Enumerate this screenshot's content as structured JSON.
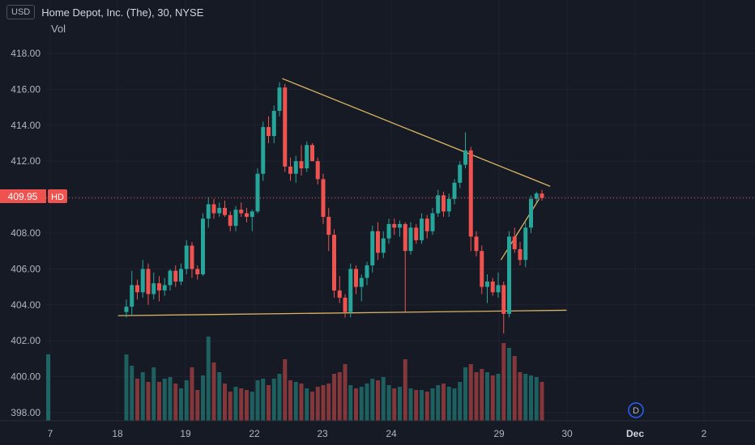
{
  "header": {
    "currency": "USD",
    "title": "Home Depot, Inc. (The), 30, NYSE",
    "volume_label": "Vol"
  },
  "price_marker": {
    "value": "409.95",
    "tag": "HD",
    "color": "#ef5350"
  },
  "colors": {
    "up": "#26a69a",
    "down": "#ef5350",
    "trendline": "#d8b463",
    "background": "#161a25"
  },
  "icons": {
    "dividend": "D"
  },
  "chart_data": {
    "type": "candlestick",
    "symbol": "HD",
    "interval": "30",
    "y_ticks": [
      "418.00",
      "416.00",
      "414.00",
      "412.00",
      "410.00",
      "408.00",
      "406.00",
      "404.00",
      "402.00",
      "400.00",
      "398.00"
    ],
    "ylim": [
      397.6,
      419.2
    ],
    "x_ticks": [
      {
        "label": "7",
        "bold": false
      },
      {
        "label": "18",
        "bold": false
      },
      {
        "label": "19",
        "bold": false
      },
      {
        "label": "22",
        "bold": false
      },
      {
        "label": "23",
        "bold": false
      },
      {
        "label": "24",
        "bold": false
      },
      {
        "label": "29",
        "bold": false
      },
      {
        "label": "30",
        "bold": false
      },
      {
        "label": "Dec",
        "bold": true
      },
      {
        "label": "2",
        "bold": false
      }
    ],
    "last_price": 409.95,
    "candles": [
      [
        403.6,
        404.3,
        403.3,
        403.9
      ],
      [
        403.9,
        405.9,
        403.4,
        405.1
      ],
      [
        405.1,
        405.4,
        404.3,
        404.7
      ],
      [
        404.7,
        406.5,
        404.4,
        406.0
      ],
      [
        406.0,
        406.3,
        404.0,
        404.6
      ],
      [
        404.6,
        405.8,
        404.3,
        405.2
      ],
      [
        405.2,
        405.6,
        404.2,
        404.8
      ],
      [
        404.8,
        405.5,
        404.5,
        405.1
      ],
      [
        405.1,
        406.0,
        404.8,
        405.9
      ],
      [
        405.9,
        406.2,
        405.0,
        405.3
      ],
      [
        405.3,
        406.3,
        405.1,
        406.0
      ],
      [
        406.0,
        407.6,
        405.7,
        407.3
      ],
      [
        407.3,
        407.5,
        405.5,
        406.0
      ],
      [
        406.0,
        406.2,
        405.4,
        405.7
      ],
      [
        405.7,
        409.1,
        405.6,
        408.8
      ],
      [
        408.8,
        410.0,
        408.3,
        409.6
      ],
      [
        409.6,
        409.9,
        408.8,
        409.1
      ],
      [
        409.1,
        409.7,
        408.9,
        409.4
      ],
      [
        409.4,
        409.8,
        408.9,
        409.0
      ],
      [
        409.0,
        409.2,
        408.1,
        408.4
      ],
      [
        408.4,
        409.5,
        408.1,
        409.3
      ],
      [
        409.3,
        409.7,
        408.9,
        409.1
      ],
      [
        409.1,
        409.4,
        408.6,
        408.9
      ],
      [
        408.9,
        409.3,
        408.1,
        409.2
      ],
      [
        409.2,
        411.6,
        409.1,
        411.3
      ],
      [
        411.3,
        414.2,
        410.9,
        413.9
      ],
      [
        413.9,
        414.5,
        413.0,
        413.4
      ],
      [
        413.4,
        415.1,
        413.0,
        414.8
      ],
      [
        414.8,
        416.4,
        414.5,
        416.1
      ],
      [
        416.1,
        416.3,
        411.4,
        411.7
      ],
      [
        411.7,
        412.2,
        410.9,
        411.3
      ],
      [
        411.3,
        412.3,
        410.8,
        412.0
      ],
      [
        412.0,
        412.9,
        411.2,
        411.6
      ],
      [
        411.6,
        413.1,
        411.4,
        412.9
      ],
      [
        412.9,
        413.0,
        412.0,
        412.0
      ],
      [
        412.0,
        412.2,
        410.7,
        411.0
      ],
      [
        411.0,
        411.3,
        408.5,
        408.9
      ],
      [
        408.9,
        409.4,
        407.0,
        407.9
      ],
      [
        407.9,
        408.2,
        404.4,
        404.8
      ],
      [
        404.8,
        405.6,
        404.1,
        404.4
      ],
      [
        404.4,
        404.6,
        403.3,
        403.6
      ],
      [
        403.6,
        406.3,
        403.3,
        406.0
      ],
      [
        406.0,
        406.2,
        404.6,
        405.0
      ],
      [
        405.0,
        405.7,
        404.2,
        405.5
      ],
      [
        405.5,
        406.4,
        405.1,
        406.2
      ],
      [
        406.2,
        408.4,
        405.8,
        408.1
      ],
      [
        408.1,
        408.6,
        406.5,
        406.9
      ],
      [
        406.9,
        408.1,
        406.6,
        407.7
      ],
      [
        407.7,
        408.8,
        407.4,
        408.5
      ],
      [
        408.5,
        408.8,
        407.9,
        408.3
      ],
      [
        408.3,
        408.7,
        407.8,
        408.5
      ],
      [
        408.5,
        408.6,
        403.6,
        407.0
      ],
      [
        407.0,
        408.6,
        406.8,
        408.3
      ],
      [
        408.3,
        408.5,
        407.4,
        407.6
      ],
      [
        407.6,
        409.1,
        407.4,
        408.8
      ],
      [
        408.8,
        409.0,
        407.7,
        408.1
      ],
      [
        408.1,
        409.4,
        407.9,
        409.1
      ],
      [
        409.1,
        410.4,
        408.9,
        410.1
      ],
      [
        410.1,
        410.3,
        408.9,
        409.2
      ],
      [
        409.2,
        410.2,
        408.9,
        409.9
      ],
      [
        409.9,
        411.0,
        409.6,
        410.8
      ],
      [
        410.8,
        412.0,
        410.5,
        411.8
      ],
      [
        411.8,
        413.6,
        411.6,
        412.6
      ],
      [
        412.6,
        412.8,
        407.0,
        407.8
      ],
      [
        407.8,
        408.1,
        406.7,
        407.0
      ],
      [
        407.0,
        407.3,
        404.6,
        405.0
      ],
      [
        405.0,
        405.7,
        404.1,
        405.3
      ],
      [
        405.3,
        405.5,
        404.5,
        404.7
      ],
      [
        404.7,
        405.8,
        404.4,
        405.1
      ],
      [
        405.1,
        405.3,
        402.4,
        403.5
      ],
      [
        403.5,
        408.1,
        403.3,
        407.8
      ],
      [
        407.8,
        408.3,
        406.9,
        407.1
      ],
      [
        407.1,
        407.5,
        406.2,
        406.5
      ],
      [
        406.5,
        408.6,
        406.1,
        408.3
      ],
      [
        408.3,
        410.1,
        408.0,
        409.9
      ],
      [
        409.9,
        410.3,
        409.7,
        410.2
      ],
      [
        410.2,
        410.4,
        409.8,
        409.95
      ]
    ],
    "volumes": [
      410,
      340,
      260,
      300,
      240,
      330,
      240,
      260,
      270,
      230,
      200,
      250,
      330,
      190,
      280,
      520,
      360,
      300,
      230,
      180,
      210,
      200,
      190,
      180,
      250,
      260,
      220,
      260,
      290,
      380,
      250,
      240,
      230,
      200,
      180,
      210,
      220,
      230,
      290,
      300,
      350,
      220,
      200,
      210,
      230,
      260,
      250,
      270,
      220,
      200,
      210,
      380,
      200,
      190,
      190,
      180,
      200,
      220,
      230,
      210,
      200,
      240,
      330,
      350,
      300,
      320,
      300,
      280,
      290,
      480,
      450,
      400,
      300,
      290,
      280,
      270,
      240
    ]
  },
  "annotations": {
    "resistance_line": {
      "from": [
        28.5,
        416.6
      ],
      "to": [
        77.5,
        410.6
      ]
    },
    "support_line": {
      "from": [
        -1.5,
        403.4
      ],
      "to": [
        80.5,
        403.7
      ]
    },
    "rising_line": {
      "from": [
        68.5,
        406.5
      ],
      "to": [
        75.5,
        409.9
      ]
    }
  }
}
